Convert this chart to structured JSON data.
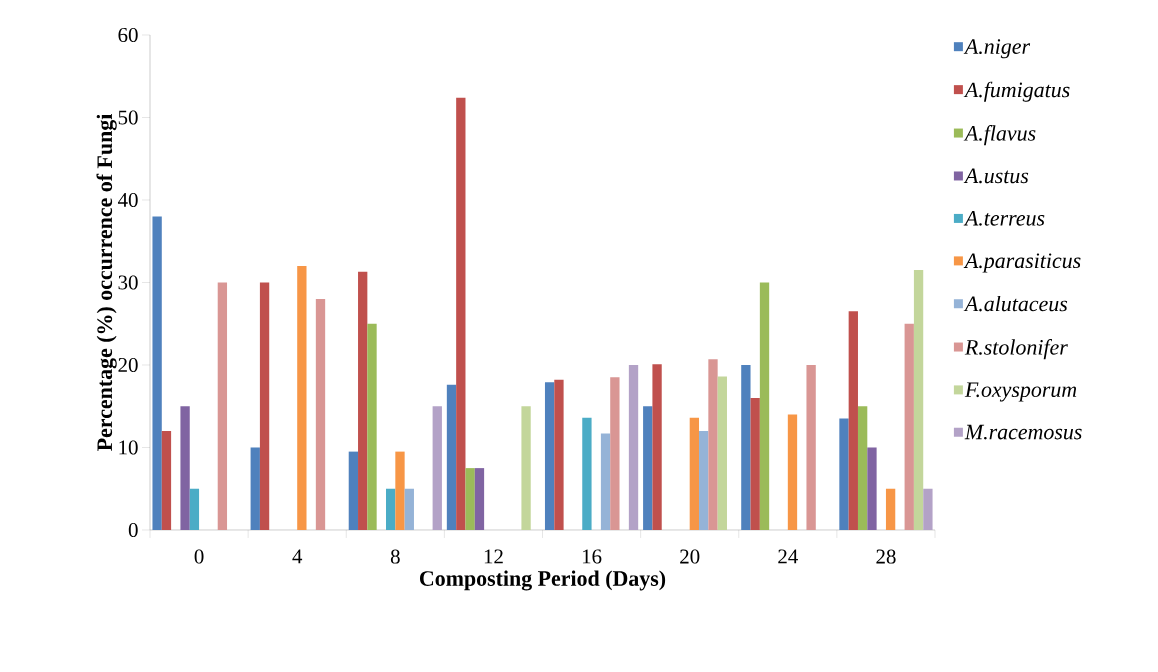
{
  "chart_data": {
    "type": "bar",
    "xlabel": "Composting Period (Days)",
    "ylabel": "Percentage (%) occurrence of Fungi",
    "categories": [
      "0",
      "4",
      "8",
      "12",
      "16",
      "20",
      "24",
      "28"
    ],
    "series": [
      {
        "name": "A.niger",
        "color": "#4f81bd",
        "values": [
          38,
          10,
          9.5,
          17.6,
          17.9,
          15,
          20,
          13.5
        ]
      },
      {
        "name": "A.fumigatus",
        "color": "#c0504d",
        "values": [
          12,
          30,
          31.3,
          52.4,
          18.2,
          20.1,
          16,
          26.5
        ]
      },
      {
        "name": "A.flavus",
        "color": "#9bbb59",
        "values": [
          0,
          0,
          25,
          7.5,
          0,
          0,
          30,
          15
        ]
      },
      {
        "name": "A.ustus",
        "color": "#8064a2",
        "values": [
          15,
          0,
          0,
          7.5,
          0,
          0,
          0,
          10
        ]
      },
      {
        "name": "A.terreus",
        "color": "#4bacc6",
        "values": [
          5,
          0,
          5,
          0,
          13.6,
          0,
          0,
          0
        ]
      },
      {
        "name": "A.parasiticus",
        "color": "#f79646",
        "values": [
          0,
          32,
          9.5,
          0,
          0,
          13.6,
          14,
          5
        ]
      },
      {
        "name": "A.alutaceus",
        "color": "#95b3d7",
        "values": [
          0,
          0,
          5,
          0,
          11.7,
          12,
          0,
          0
        ]
      },
      {
        "name": "R.stolonifer",
        "color": "#d99694",
        "values": [
          30,
          28,
          0,
          0,
          18.5,
          20.7,
          20,
          25
        ]
      },
      {
        "name": "F.oxysporum",
        "color": "#c3d69b",
        "values": [
          0,
          0,
          0,
          15,
          0,
          18.6,
          0,
          31.5
        ]
      },
      {
        "name": "M.racemosus",
        "color": "#b3a2c7",
        "values": [
          0,
          0,
          15,
          0,
          20,
          0,
          0,
          5
        ]
      }
    ],
    "ylim": [
      0,
      60
    ],
    "yticks": [
      0,
      10,
      20,
      30,
      40,
      50,
      60
    ],
    "grid": false,
    "legend": "right"
  }
}
